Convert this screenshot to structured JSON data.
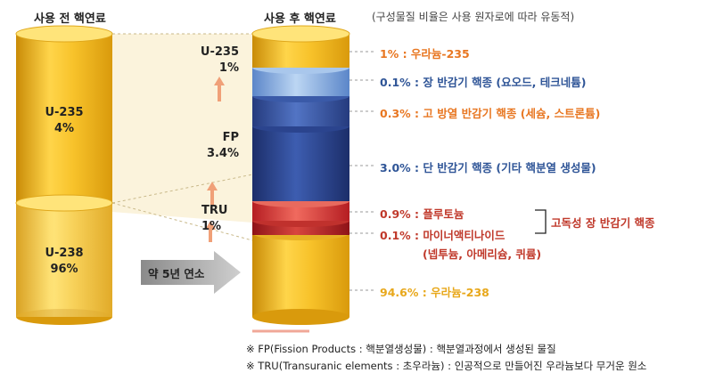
{
  "headers": {
    "before": "사용 전 핵연료",
    "after": "사용 후 핵연료",
    "note": "(구성물질 비율은 사용 원자로에 따라 유동적)"
  },
  "fresh_fuel": {
    "u235": {
      "name": "U-235",
      "percent": "4%"
    },
    "u238": {
      "name": "U-238",
      "percent": "96%"
    }
  },
  "inner_labels": {
    "u235": {
      "name": "U-235",
      "percent": "1%"
    },
    "fp": {
      "name": "FP",
      "percent": "3.4%"
    },
    "tru": {
      "name": "TRU",
      "percent": "1%"
    }
  },
  "arrow_label": "약 5년 연소",
  "composition": [
    {
      "text": "1% : 우라늄-235",
      "color": "#e87722"
    },
    {
      "text": "0.1% : 장 반감기 핵종 (요오드, 테크네튬)",
      "color": "#2f5597"
    },
    {
      "text": "0.3% : 고 방열 반감기 핵종 (세슘, 스트론튬)",
      "color": "#e87722"
    },
    {
      "text": "3.0% : 단 반감기 핵종 (기타 핵분열 생성물)",
      "color": "#2f5597"
    },
    {
      "text": "0.9% : 플루토늄",
      "color": "#c0392b"
    },
    {
      "text": "0.1% : 마이너액티나이드",
      "color": "#c0392b"
    },
    {
      "text": "(넵투늄, 아메리슘, 퀴륨)",
      "color": "#c0392b"
    },
    {
      "text": "94.6% : 우라늄-238",
      "color": "#e8a81c"
    }
  ],
  "bracket_label": "고독성 장 반감기 핵종",
  "footnotes": [
    "※ FP(Fission Products : 핵분열생성물) : 핵분열과정에서 생성된 물질",
    "※ TRU(Transuranic elements : 초우라늄) : 인공적으로 만들어진 우라늄보다 무거운 원소"
  ]
}
